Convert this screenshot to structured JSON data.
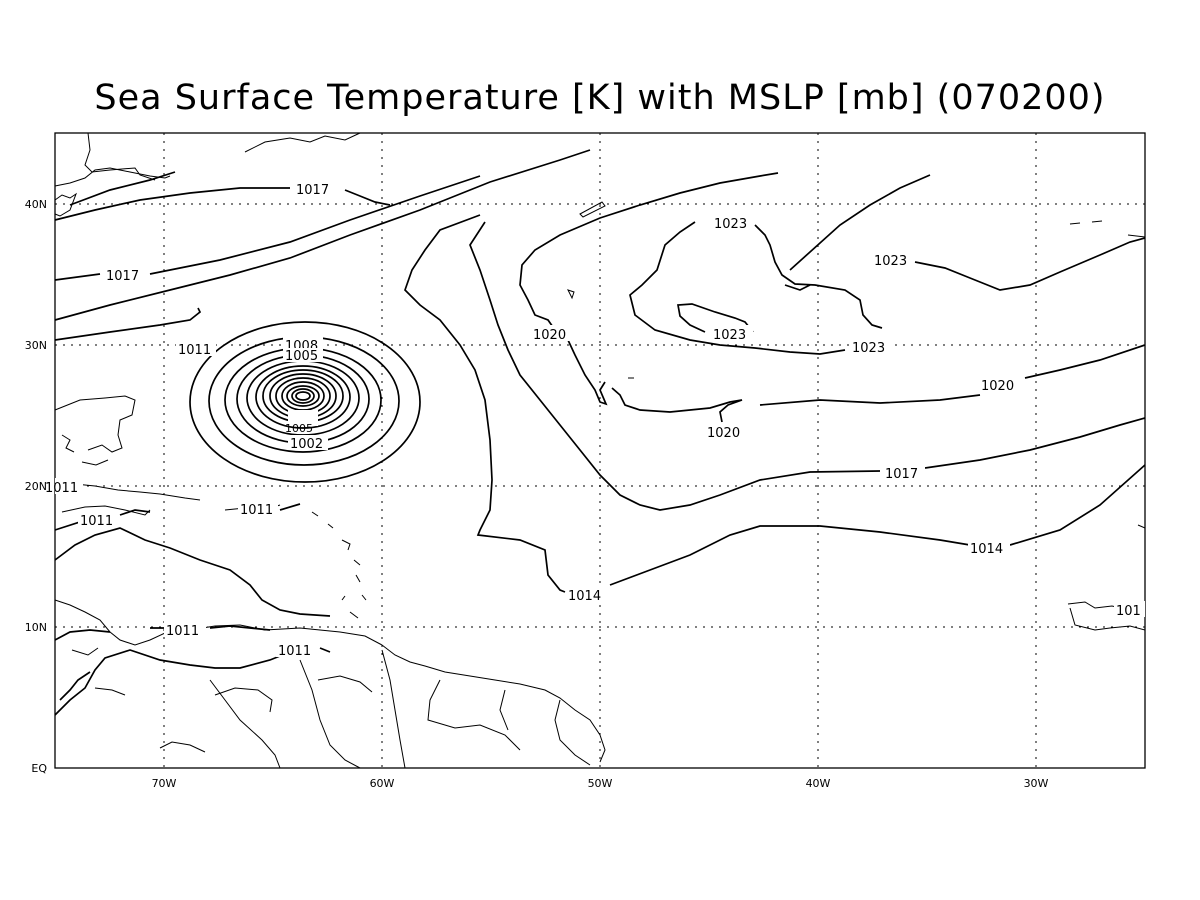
{
  "title": "Sea Surface Temperature [K] with MSLP [mb] (070200)",
  "axes": {
    "x_ticks": [
      "70W",
      "60W",
      "50W",
      "40W",
      "30W"
    ],
    "y_ticks": [
      "40N",
      "30N",
      "20N",
      "10N",
      "EQ"
    ],
    "lon_range": [
      -75,
      -25
    ],
    "lat_range": [
      0,
      45
    ],
    "grid": "dotted"
  },
  "contour_labels": [
    "1017",
    "1017",
    "1011",
    "1008",
    "1005",
    "1002",
    "1011",
    "1011",
    "1011",
    "1011",
    "1011",
    "1020",
    "1023",
    "1023",
    "1023",
    "1023",
    "1020",
    "1020",
    "1017",
    "1014",
    "1014",
    "101",
    "1005"
  ],
  "colors": {
    "line": "#000000",
    "background": "#ffffff"
  }
}
